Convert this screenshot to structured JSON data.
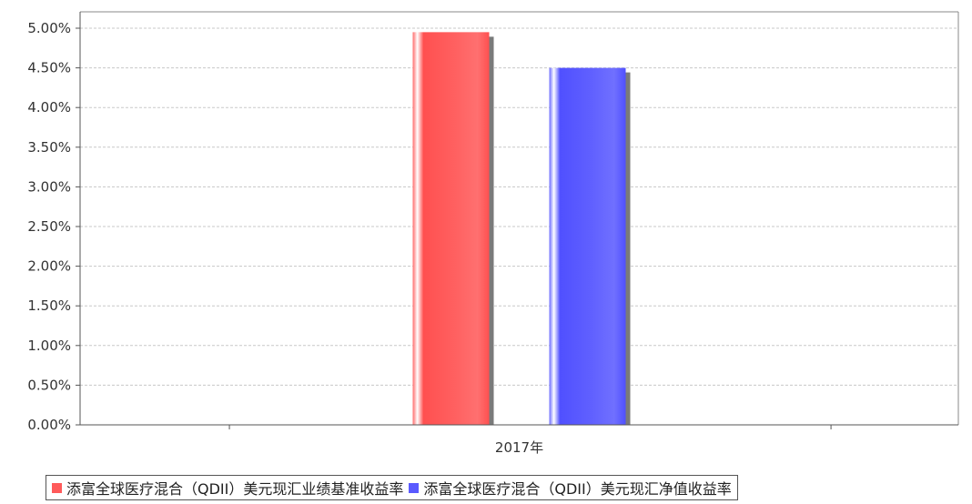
{
  "chart_data": {
    "type": "bar",
    "title": "",
    "xlabel": "",
    "ylabel": "",
    "categories": [
      "2017年"
    ],
    "series": [
      {
        "name": "添富全球医疗混合（QDII）美元现汇业绩基准收益率",
        "values": [
          4.95
        ],
        "color": "#ff5a5a"
      },
      {
        "name": "添富全球医疗混合（QDII）美元现汇净值收益率",
        "values": [
          4.5
        ],
        "color": "#5a5aff"
      }
    ],
    "ylim": [
      0,
      5
    ],
    "y_ticks": [
      "0.00%",
      "0.50%",
      "1.00%",
      "1.50%",
      "2.00%",
      "2.50%",
      "3.00%",
      "3.50%",
      "4.00%",
      "4.50%",
      "5.00%"
    ],
    "y_tick_values": [
      0,
      0.5,
      1,
      1.5,
      2,
      2.5,
      3,
      3.5,
      4,
      4.5,
      5
    ],
    "grid": true,
    "legend_position": "bottom"
  }
}
